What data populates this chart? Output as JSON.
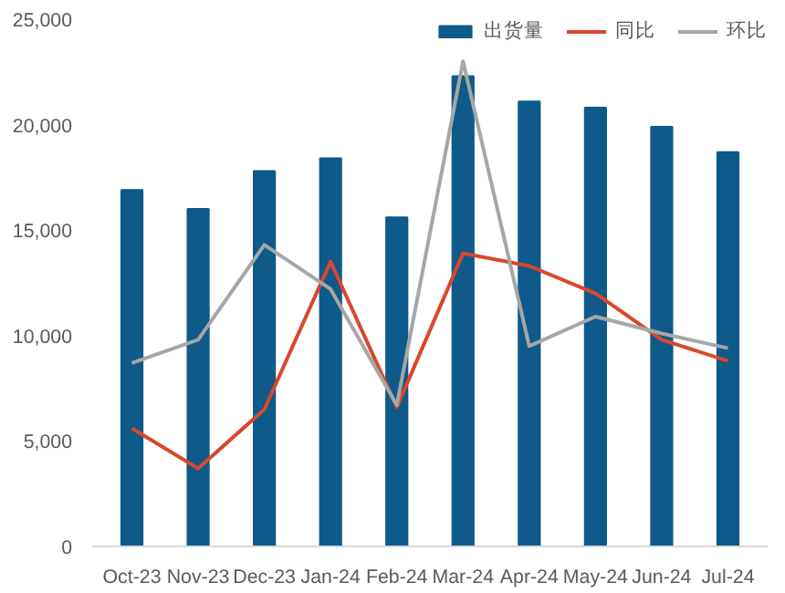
{
  "chart_data": {
    "type": "bar",
    "categories": [
      "Oct-23",
      "Nov-23",
      "Dec-23",
      "Jan-24",
      "Feb-24",
      "Mar-24",
      "Apr-24",
      "May-24",
      "Jun-24",
      "Jul-24"
    ],
    "series": [
      {
        "name": "出货量",
        "color": "#0e5a8a",
        "values": [
          16900,
          16000,
          17800,
          18400,
          15600,
          22300,
          21100,
          20800,
          19900,
          18700
        ]
      },
      {
        "name": "同比",
        "type": "line",
        "color": "#d9472b",
        "values": [
          5600,
          3700,
          6500,
          13500,
          6600,
          13900,
          13300,
          12000,
          9800,
          8800
        ]
      },
      {
        "name": "环比",
        "type": "line",
        "color": "#a6a6a6",
        "values": [
          8700,
          9800,
          14300,
          12200,
          6700,
          23000,
          9500,
          10900,
          10100,
          9400
        ]
      }
    ],
    "ylim": [
      0,
      25000
    ],
    "yticks": [
      0,
      {
        "value": 5000,
        "label": "5,000"
      },
      {
        "value": 10000,
        "label": "10,000"
      },
      {
        "value": 15000,
        "label": "15,000"
      },
      {
        "value": 20000,
        "label": "20,000"
      },
      {
        "value": 25000,
        "label": "25,000"
      }
    ],
    "grid": false,
    "legend": "top right",
    "line_style": "solid",
    "marker": "none"
  }
}
